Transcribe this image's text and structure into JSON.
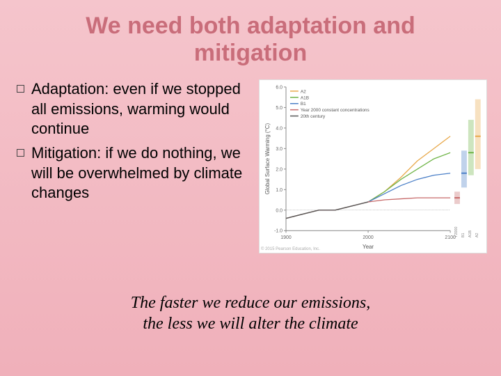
{
  "title_line1": "We need both adaptation and",
  "title_line2": "mitigation",
  "title_color": "#c96d7a",
  "bullets": [
    "Adaptation: even if we stopped all emissions, warming would continue",
    "Mitigation: if we do nothing, we will be overwhelmed by climate changes"
  ],
  "footer_line1": "The faster we reduce our emissions,",
  "footer_line2": "the less we will alter the climate",
  "chart": {
    "type": "line",
    "background_color": "#ffffff",
    "x": {
      "label": "Year",
      "min": 1900,
      "max": 2100,
      "ticks": [
        1900,
        2000,
        2100
      ]
    },
    "y": {
      "label": "Global Surface Warming (°C)",
      "min": -1.0,
      "max": 6.0,
      "ticks": [
        -1.0,
        0,
        1.0,
        2.0,
        3.0,
        4.0,
        5.0,
        6.0
      ]
    },
    "axis_color": "#888888",
    "grid_color": "#f0f0f0",
    "tick_font_size": 7,
    "label_font_size": 8,
    "legend_font_size": 6.5,
    "series": [
      {
        "name": "A2",
        "color": "#e8a84a",
        "points": [
          [
            1900,
            -0.4
          ],
          [
            1920,
            -0.2
          ],
          [
            1940,
            0.0
          ],
          [
            1960,
            0.0
          ],
          [
            1980,
            0.2
          ],
          [
            2000,
            0.4
          ],
          [
            2020,
            0.9
          ],
          [
            2040,
            1.6
          ],
          [
            2060,
            2.4
          ],
          [
            2080,
            3.0
          ],
          [
            2100,
            3.6
          ]
        ]
      },
      {
        "name": "A1B",
        "color": "#6fb447",
        "points": [
          [
            1900,
            -0.4
          ],
          [
            1920,
            -0.2
          ],
          [
            1940,
            0.0
          ],
          [
            1960,
            0.0
          ],
          [
            1980,
            0.2
          ],
          [
            2000,
            0.4
          ],
          [
            2020,
            0.9
          ],
          [
            2040,
            1.5
          ],
          [
            2060,
            2.0
          ],
          [
            2080,
            2.5
          ],
          [
            2100,
            2.8
          ]
        ]
      },
      {
        "name": "B1",
        "color": "#4a7fc7",
        "points": [
          [
            1900,
            -0.4
          ],
          [
            1920,
            -0.2
          ],
          [
            1940,
            0.0
          ],
          [
            1960,
            0.0
          ],
          [
            1980,
            0.2
          ],
          [
            2000,
            0.4
          ],
          [
            2020,
            0.8
          ],
          [
            2040,
            1.2
          ],
          [
            2060,
            1.5
          ],
          [
            2080,
            1.7
          ],
          [
            2100,
            1.8
          ]
        ]
      },
      {
        "name": "Year 2000 constant concentrations",
        "color": "#c76a6a",
        "points": [
          [
            1900,
            -0.4
          ],
          [
            1920,
            -0.2
          ],
          [
            1940,
            0.0
          ],
          [
            1960,
            0.0
          ],
          [
            1980,
            0.2
          ],
          [
            2000,
            0.4
          ],
          [
            2020,
            0.5
          ],
          [
            2040,
            0.55
          ],
          [
            2060,
            0.6
          ],
          [
            2080,
            0.6
          ],
          [
            2100,
            0.6
          ]
        ]
      },
      {
        "name": "20th century",
        "color": "#555555",
        "points": [
          [
            1900,
            -0.4
          ],
          [
            1920,
            -0.2
          ],
          [
            1940,
            0.0
          ],
          [
            1960,
            0.0
          ],
          [
            1980,
            0.2
          ],
          [
            2000,
            0.4
          ]
        ]
      }
    ],
    "range_bars": [
      {
        "name": "Y2000",
        "color": "#c76a6a",
        "x_offset": 0,
        "low": 0.3,
        "mid": 0.6,
        "high": 0.9
      },
      {
        "name": "B1",
        "color": "#4a7fc7",
        "x_offset": 1,
        "low": 1.1,
        "mid": 1.8,
        "high": 2.9
      },
      {
        "name": "A1B",
        "color": "#6fb447",
        "x_offset": 2,
        "low": 1.7,
        "mid": 2.8,
        "high": 4.4
      },
      {
        "name": "A2",
        "color": "#e8a84a",
        "x_offset": 3,
        "low": 2.0,
        "mid": 3.6,
        "high": 5.4
      }
    ],
    "copyright": "© 2015 Pearson Education, Inc."
  }
}
